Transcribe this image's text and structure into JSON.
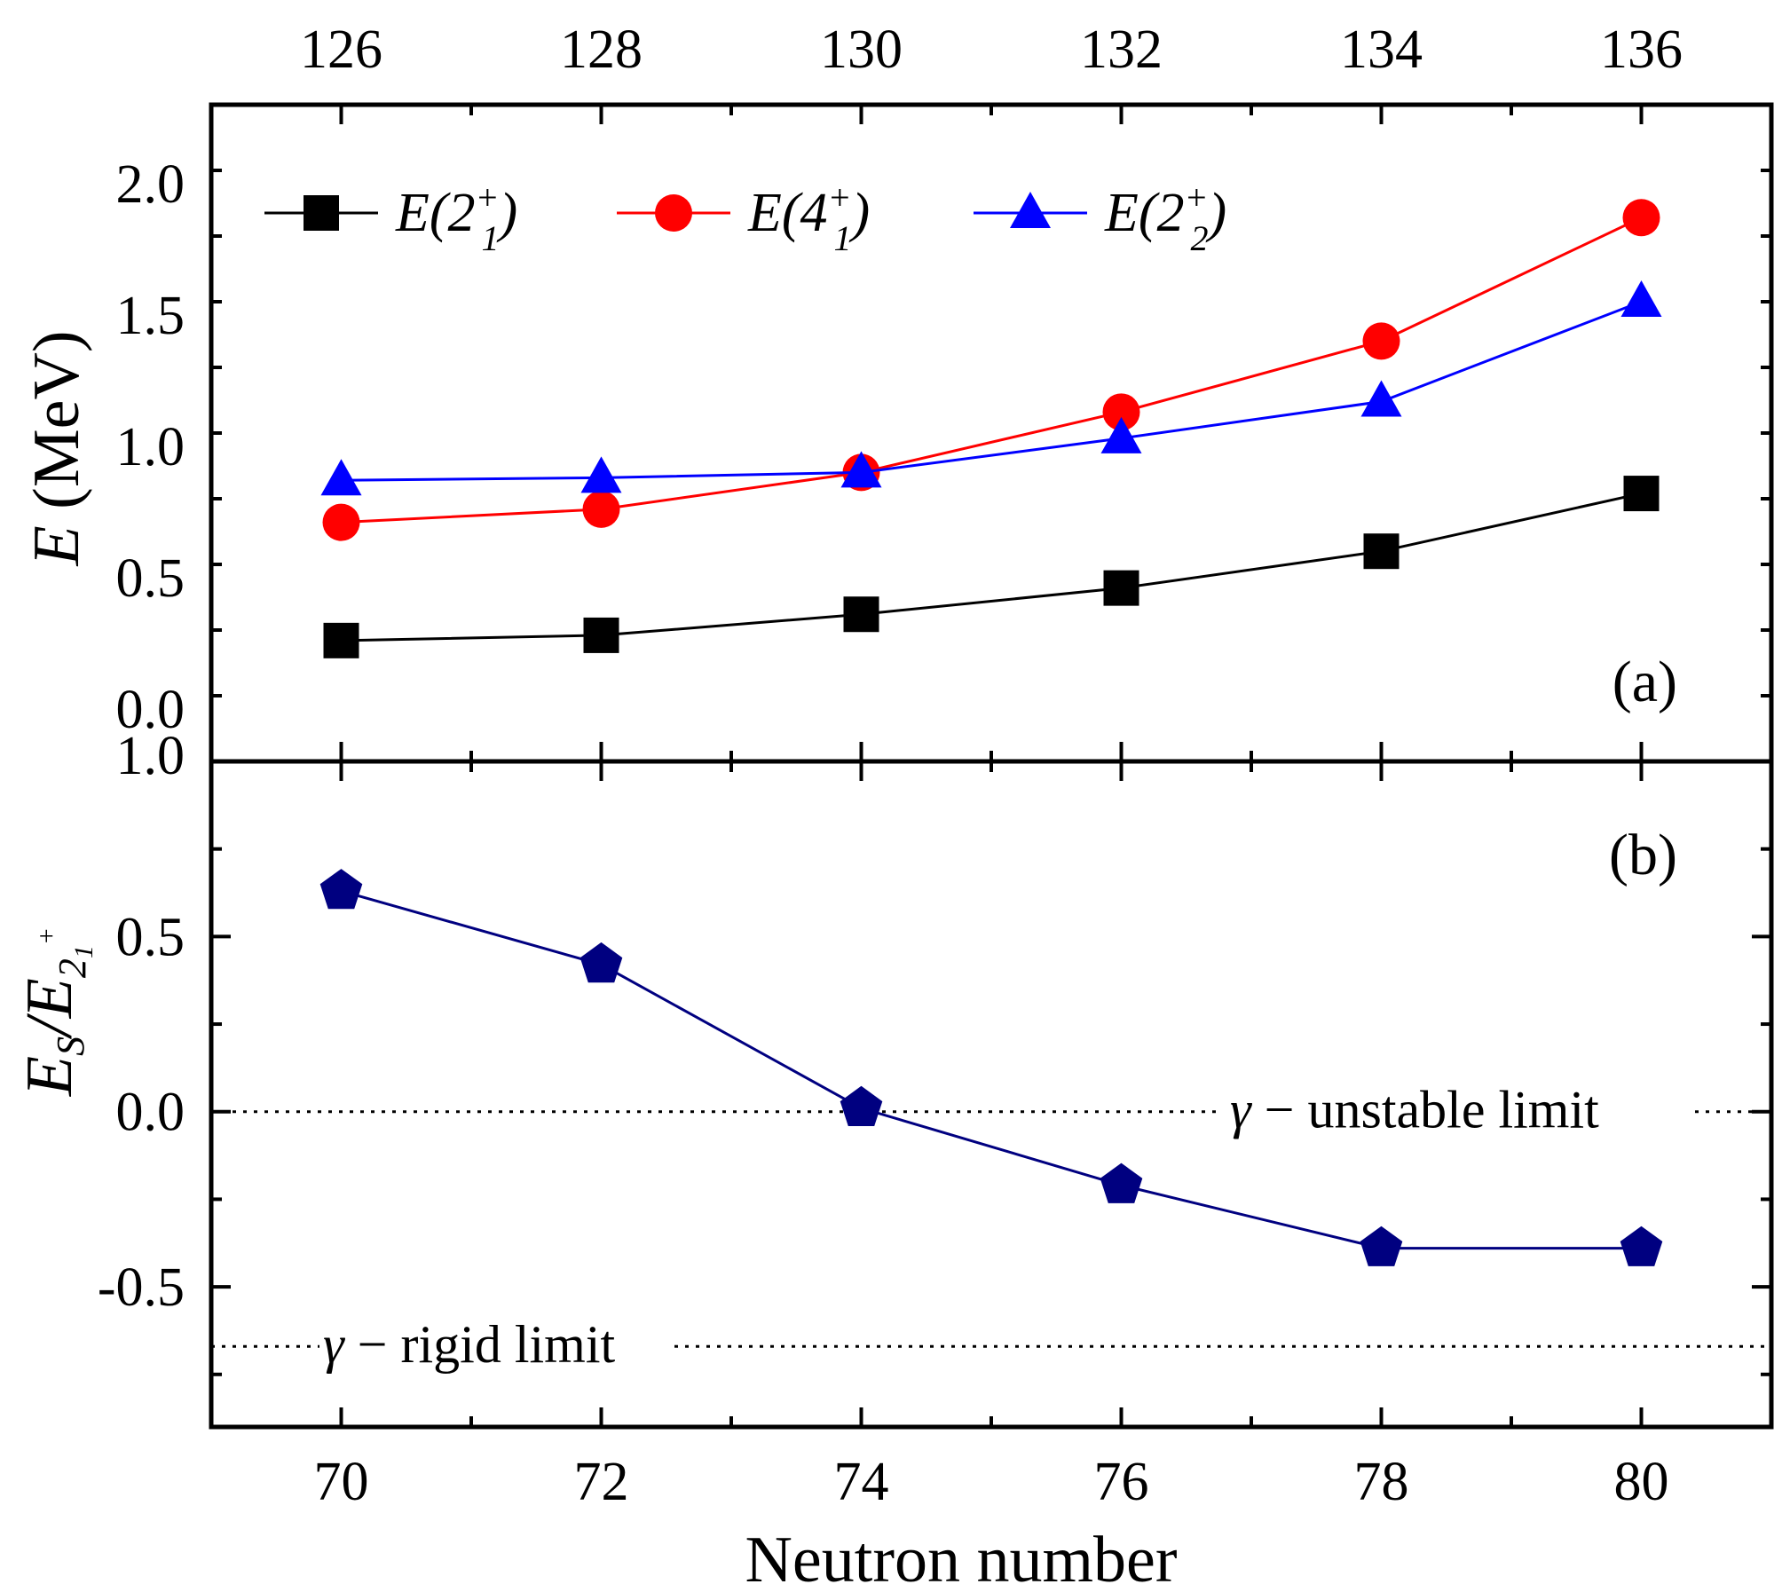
{
  "chart_data": [
    {
      "panel": "a",
      "type": "line",
      "panel_label": "(a)",
      "ylabel": "E (MeV)",
      "ylabel_italic_part": "E",
      "ylabel_plain_part": " (MeV)",
      "ylim": [
        -0.2,
        2.3
      ],
      "yticks": [
        0.0,
        0.5,
        1.0,
        1.5,
        2.0
      ],
      "ytick_labels": [
        "0.0",
        "0.5",
        "1.0",
        "1.5",
        "2.0"
      ],
      "x": [
        70,
        72,
        74,
        76,
        78,
        80
      ],
      "xlim": [
        69,
        81
      ],
      "top_axis_ticks": [
        126,
        128,
        130,
        132,
        134,
        136
      ],
      "top_axis_labels": [
        "126",
        "128",
        "130",
        "132",
        "134",
        "136"
      ],
      "legend_position": "top-left",
      "series": [
        {
          "name": "E(2₁⁺)",
          "base": "E(2",
          "sup": "+",
          "sub": "1",
          "tail": ")",
          "color": "#000000",
          "marker": "square",
          "values": [
            0.26,
            0.28,
            0.36,
            0.46,
            0.6,
            0.82
          ]
        },
        {
          "name": "E(4₁⁺)",
          "base": "E(4",
          "sup": "+",
          "sub": "1",
          "tail": ")",
          "color": "#ff0000",
          "marker": "circle",
          "values": [
            0.71,
            0.76,
            0.9,
            1.13,
            1.4,
            1.87
          ]
        },
        {
          "name": "E(2₂⁺)",
          "base": "E(2",
          "sup": "+",
          "sub": "2",
          "tail": ")",
          "color": "#0000ff",
          "marker": "triangle",
          "values": [
            0.87,
            0.88,
            0.9,
            1.03,
            1.17,
            1.55
          ]
        }
      ]
    },
    {
      "panel": "b",
      "type": "line",
      "panel_label": "(b)",
      "ylabel": "E_S/E_{2_1^+}",
      "ylim": [
        -0.9,
        1.0
      ],
      "yticks": [
        -0.5,
        0.0,
        0.5,
        1.0
      ],
      "ytick_labels": [
        "-0.5",
        "0.0",
        "0.5",
        "1.0"
      ],
      "x": [
        70,
        72,
        74,
        76,
        78,
        80
      ],
      "xticks": [
        70,
        72,
        74,
        76,
        78,
        80
      ],
      "xtick_labels": [
        "70",
        "72",
        "74",
        "76",
        "78",
        "80"
      ],
      "xlim": [
        69,
        81
      ],
      "xlabel": "Neutron number",
      "series": [
        {
          "color": "#000080",
          "marker": "pentagon",
          "values": [
            0.63,
            0.42,
            0.01,
            -0.21,
            -0.39,
            -0.39
          ]
        }
      ],
      "reference_lines": [
        {
          "y": 0.0,
          "label_prefix": "γ",
          "label_text": " − unstable limit"
        },
        {
          "y": -0.67,
          "label_prefix": "γ",
          "label_text": " − rigid limit"
        }
      ]
    }
  ]
}
